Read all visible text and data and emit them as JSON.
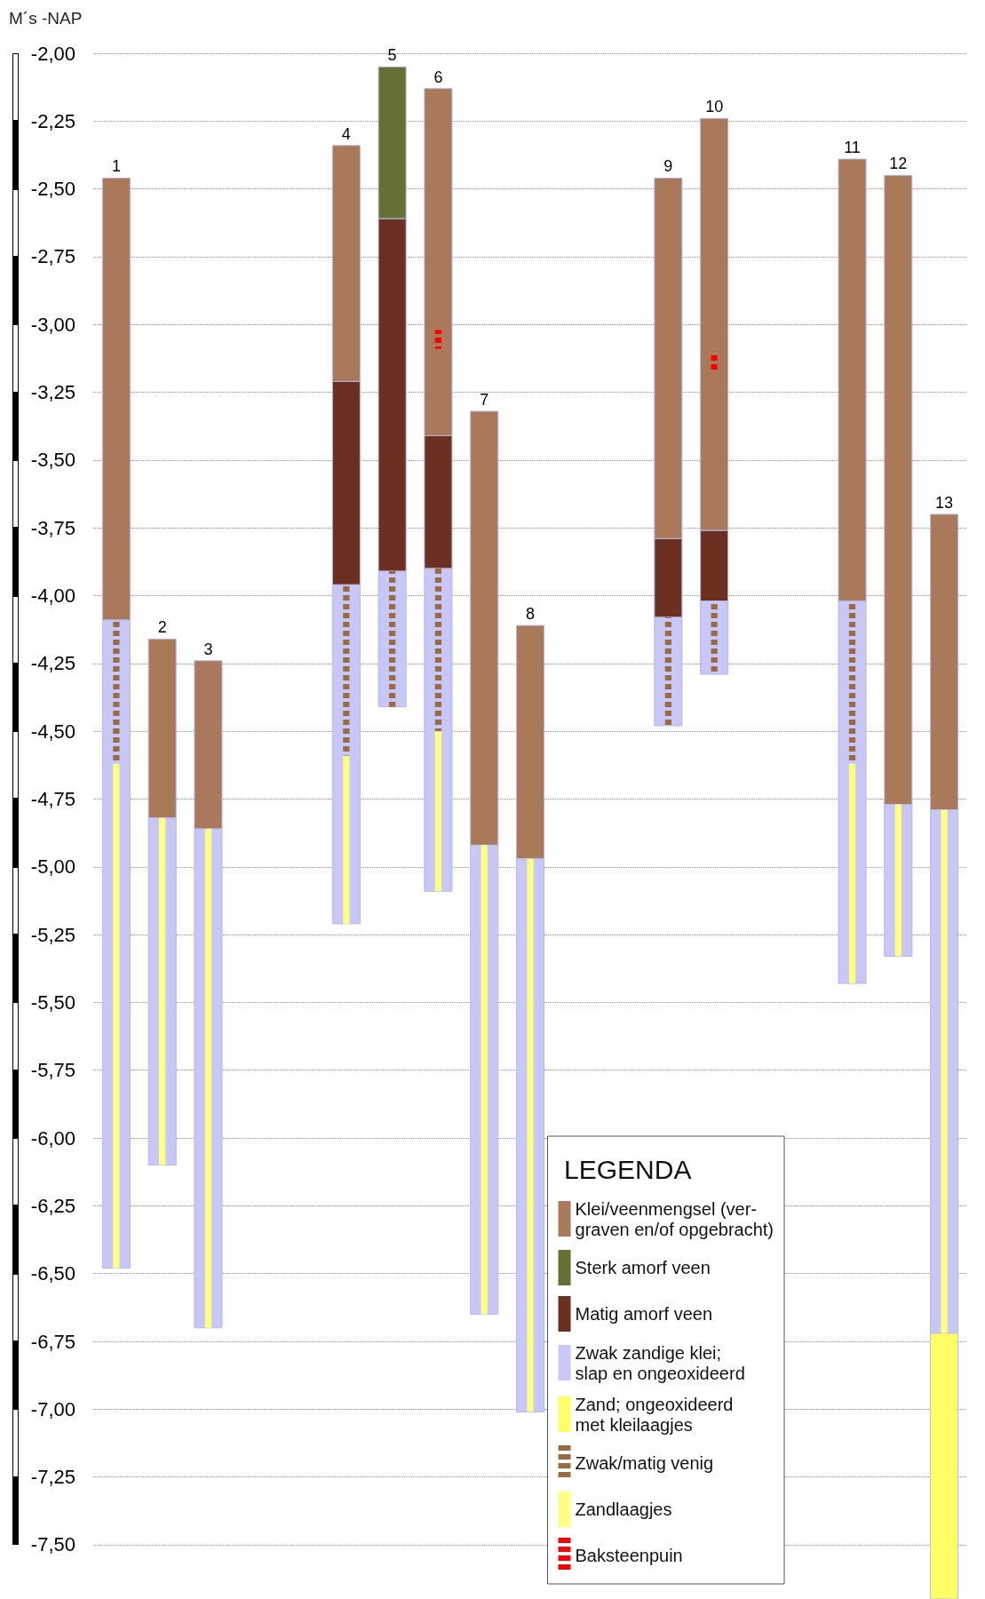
{
  "chart_data": {
    "type": "bar",
    "ylabel": "M´s -NAP",
    "legend_title": "LEGENDA",
    "legend": "bottom right",
    "grid": "y",
    "categories": [
      "1",
      "2",
      "3",
      null,
      null,
      "4",
      "5",
      "6",
      "7",
      "8",
      null,
      null,
      "9",
      "10",
      null,
      null,
      "11",
      "12",
      "13"
    ],
    "ylim": [
      -7.7,
      -2
    ],
    "yticks": [
      {
        "value": -2,
        "label": "-2,00"
      },
      {
        "value": -2.25,
        "label": "-2,25"
      },
      {
        "value": -2.5,
        "label": "-2,50"
      },
      {
        "value": -2.75,
        "label": "-2,75"
      },
      {
        "value": -3,
        "label": "-3,00"
      },
      {
        "value": -3.25,
        "label": "-3,25"
      },
      {
        "value": -3.5,
        "label": "-3,50"
      },
      {
        "value": -3.75,
        "label": "-3,75"
      },
      {
        "value": -4,
        "label": "-4,00"
      },
      {
        "value": -4.25,
        "label": "-4,25"
      },
      {
        "value": -4.5,
        "label": "-4,50"
      },
      {
        "value": -4.75,
        "label": "-4,75"
      },
      {
        "value": -5,
        "label": "-5,00"
      },
      {
        "value": -5.25,
        "label": "-5,25"
      },
      {
        "value": -5.5,
        "label": "-5,50"
      },
      {
        "value": -5.75,
        "label": "-5,75"
      },
      {
        "value": -6,
        "label": "-6,00"
      },
      {
        "value": -6.25,
        "label": "-6,25"
      },
      {
        "value": -6.5,
        "label": "-6,50"
      },
      {
        "value": -6.75,
        "label": "-6,75"
      },
      {
        "value": -7,
        "label": "-7,00"
      },
      {
        "value": -7.25,
        "label": "-7,25"
      },
      {
        "value": -7.5,
        "label": "-7,50"
      }
    ],
    "series": [
      {
        "name": "Klei/veenmengsel (ver-\ngraven en/of opgebracht)",
        "color": "#a9795a",
        "base": [
          -2.46,
          -4.16,
          -4.24,
          null,
          null,
          -2.34,
          null,
          -2.13,
          -3.32,
          -4.11,
          null,
          null,
          -2.46,
          -2.24,
          null,
          null,
          -2.39,
          -2.45,
          -3.7
        ],
        "values": [
          -1.63,
          -0.66,
          -0.62,
          null,
          null,
          -0.87,
          null,
          -1.28,
          -1.6,
          -0.86,
          null,
          null,
          -1.33,
          -1.52,
          null,
          null,
          -1.63,
          -2.32,
          -1.09
        ]
      },
      {
        "name": "Sterk amorf veen",
        "color": "#667035",
        "base": [
          null,
          null,
          null,
          null,
          null,
          null,
          -2.05,
          null,
          null,
          null,
          null,
          null,
          null,
          null,
          null,
          null,
          null,
          null,
          null
        ],
        "values": [
          null,
          null,
          null,
          null,
          null,
          null,
          -0.56,
          null,
          null,
          null,
          null,
          null,
          null,
          null,
          null,
          null,
          null,
          null,
          null
        ]
      },
      {
        "name": "Matig amorf veen",
        "color": "#6b3020",
        "base": [
          null,
          null,
          null,
          null,
          null,
          -3.21,
          -2.61,
          -3.41,
          null,
          null,
          null,
          null,
          -3.79,
          -3.76,
          null,
          null,
          null,
          null,
          null
        ],
        "values": [
          null,
          null,
          null,
          null,
          null,
          -0.75,
          -1.3,
          -0.49,
          null,
          null,
          null,
          null,
          -0.29,
          -0.26,
          null,
          null,
          null,
          null,
          null
        ]
      },
      {
        "name": "Zwak zandige klei;\nslap en ongeoxideerd",
        "color": "#c8c8f8",
        "base": [
          -4.09,
          -4.82,
          -4.86,
          null,
          null,
          -3.96,
          -3.91,
          -3.9,
          -4.92,
          -4.97,
          null,
          null,
          -4.08,
          -4.02,
          null,
          null,
          -4.02,
          -4.77,
          -4.79
        ],
        "values": [
          -2.39,
          -1.28,
          -1.84,
          null,
          null,
          -1.25,
          -0.5,
          -1.19,
          -1.73,
          -2.04,
          null,
          null,
          -0.4,
          -0.27,
          null,
          null,
          -1.41,
          -0.56,
          -1.93
        ]
      },
      {
        "name": "Zand; ongeoxideerd\nmet kleilaagjes",
        "color": "#ffff66",
        "base": [
          null,
          null,
          null,
          null,
          null,
          null,
          null,
          null,
          null,
          null,
          null,
          null,
          null,
          null,
          null,
          null,
          null,
          null,
          -6.72
        ],
        "values": [
          null,
          null,
          null,
          null,
          null,
          null,
          null,
          null,
          null,
          null,
          null,
          null,
          null,
          null,
          null,
          null,
          null,
          null,
          -0.98
        ]
      },
      {
        "name": "Zwak/matig venig",
        "color": "#9c6a3e",
        "line_style": "dashed",
        "base": [
          -4.09,
          null,
          null,
          null,
          null,
          -3.96,
          -3.91,
          -3.9,
          null,
          null,
          null,
          null,
          -4.08,
          -4.02,
          null,
          null,
          -4.02,
          null,
          null
        ],
        "values": [
          -0.53,
          null,
          null,
          null,
          null,
          -0.63,
          -0.5,
          -0.6,
          null,
          null,
          null,
          null,
          -0.4,
          -0.27,
          null,
          null,
          -0.6,
          null,
          null
        ]
      },
      {
        "name": "Zandlaagjes",
        "color": "#ffff80",
        "line_style": "solid",
        "base": [
          -4.62,
          -4.82,
          -4.86,
          null,
          null,
          -4.59,
          null,
          -4.5,
          -4.92,
          -4.97,
          null,
          null,
          null,
          null,
          null,
          null,
          -4.62,
          -4.77,
          -4.79
        ],
        "values": [
          -1.86,
          -1.28,
          -1.84,
          null,
          null,
          -0.62,
          null,
          -0.59,
          -1.73,
          -2.04,
          null,
          null,
          null,
          null,
          null,
          null,
          -0.81,
          -0.56,
          -1.93
        ]
      },
      {
        "name": "Baksteenpuin",
        "color": "#ff0000",
        "line_style": "dashed",
        "base": [
          null,
          null,
          null,
          null,
          null,
          null,
          null,
          -3.02,
          null,
          null,
          null,
          null,
          null,
          -3.1,
          null,
          null,
          null,
          null,
          null
        ],
        "values": [
          null,
          null,
          null,
          null,
          null,
          null,
          null,
          -0.07,
          null,
          null,
          null,
          null,
          null,
          -0.07,
          null,
          null,
          null,
          null,
          null
        ]
      }
    ]
  }
}
